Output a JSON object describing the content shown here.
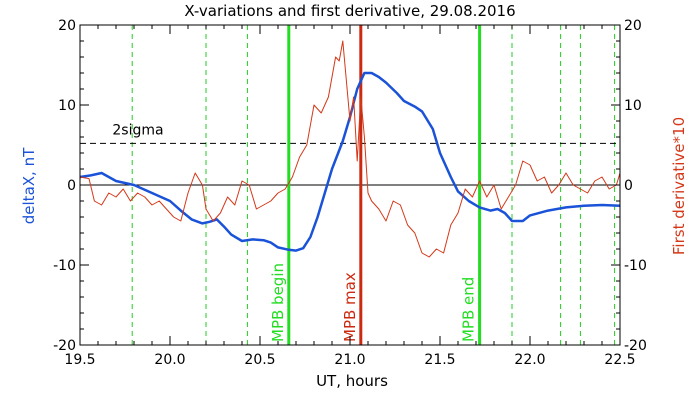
{
  "chart_data": {
    "type": "line",
    "title": "X-variations and first derivative, 29.08.2016",
    "xlabel": "UT, hours",
    "ylabel_left": "deltaX, nT",
    "ylabel_right": "First derivative*10",
    "xlim": [
      19.5,
      22.5
    ],
    "ylim": [
      -20,
      20
    ],
    "x_ticks": [
      "19.5",
      "20.0",
      "20.5",
      "21.0",
      "21.5",
      "22.0",
      "22.5"
    ],
    "x_tick_values": [
      19.5,
      20.0,
      20.5,
      21.0,
      21.5,
      22.0,
      22.5
    ],
    "y_ticks": [
      "20",
      "10",
      "0",
      "-10",
      "-20"
    ],
    "y_tick_values": [
      20,
      10,
      0,
      -10,
      -20
    ],
    "sigma_label": "2sigma",
    "sigma_value": 5.2,
    "zero_line": 0,
    "colors": {
      "deltax": "#1a52d8",
      "derivative": "#d43818",
      "mpb_begin": "#22dd22",
      "mpb_max": "#cc2a10",
      "mpb_end": "#22dd22",
      "dashed_markers": "#22cc22",
      "ylabel_left": "#1a52d8",
      "ylabel_right": "#d43818"
    },
    "dashed_vertical_lines": [
      19.79,
      20.2,
      20.43,
      21.9,
      22.17,
      22.28,
      22.47
    ],
    "events": [
      {
        "label": "MPB begin",
        "x": 20.66
      },
      {
        "label": "MPB max",
        "x": 21.06
      },
      {
        "label": "MPB end",
        "x": 21.72
      }
    ],
    "series": [
      {
        "id": "deltax",
        "x": [
          19.5,
          19.56,
          19.62,
          19.7,
          19.8,
          19.9,
          20.0,
          20.06,
          20.12,
          20.18,
          20.22,
          20.26,
          20.3,
          20.34,
          20.4,
          20.46,
          20.52,
          20.56,
          20.6,
          20.66,
          20.7,
          20.74,
          20.78,
          20.82,
          20.86,
          20.9,
          20.96,
          21.0,
          21.04,
          21.08,
          21.12,
          21.16,
          21.2,
          21.26,
          21.3,
          21.36,
          21.4,
          21.46,
          21.5,
          21.56,
          21.6,
          21.66,
          21.72,
          21.78,
          21.82,
          21.86,
          21.9,
          21.96,
          22.0,
          22.1,
          22.2,
          22.3,
          22.4,
          22.5
        ],
        "y": [
          1.0,
          1.2,
          1.5,
          0.5,
          0.0,
          -1.0,
          -2.0,
          -3.2,
          -4.3,
          -4.8,
          -4.6,
          -4.3,
          -5.2,
          -6.2,
          -7.0,
          -6.8,
          -6.9,
          -7.2,
          -7.8,
          -8.1,
          -8.2,
          -7.9,
          -6.5,
          -4.0,
          -1.0,
          2.0,
          5.5,
          8.5,
          12.0,
          14.0,
          14.0,
          13.5,
          12.8,
          11.5,
          10.5,
          9.8,
          9.2,
          7.0,
          4.0,
          1.0,
          -0.8,
          -2.0,
          -2.8,
          -3.2,
          -3.0,
          -3.5,
          -4.5,
          -4.5,
          -3.8,
          -3.2,
          -2.8,
          -2.6,
          -2.5,
          -2.6
        ]
      },
      {
        "id": "derivative",
        "x": [
          19.5,
          19.55,
          19.58,
          19.62,
          19.66,
          19.7,
          19.74,
          19.78,
          19.82,
          19.86,
          19.9,
          19.94,
          19.98,
          20.02,
          20.06,
          20.1,
          20.14,
          20.18,
          20.2,
          20.24,
          20.28,
          20.32,
          20.36,
          20.4,
          20.44,
          20.48,
          20.52,
          20.56,
          20.6,
          20.64,
          20.68,
          20.72,
          20.76,
          20.8,
          20.84,
          20.88,
          20.92,
          20.94,
          20.96,
          21.0,
          21.02,
          21.04,
          21.06,
          21.08,
          21.1,
          21.12,
          21.16,
          21.2,
          21.24,
          21.28,
          21.32,
          21.36,
          21.4,
          21.44,
          21.48,
          21.52,
          21.56,
          21.6,
          21.64,
          21.68,
          21.72,
          21.76,
          21.8,
          21.84,
          21.88,
          21.92,
          21.96,
          22.0,
          22.04,
          22.08,
          22.12,
          22.16,
          22.2,
          22.24,
          22.28,
          22.32,
          22.36,
          22.4,
          22.44,
          22.48,
          22.5
        ],
        "y": [
          1.0,
          0.8,
          -2.0,
          -2.5,
          -1.0,
          -1.5,
          -0.5,
          -2.0,
          -1.0,
          -1.5,
          -2.5,
          -2.0,
          -3.0,
          -4.0,
          -4.5,
          -1.0,
          1.5,
          0.0,
          -3.0,
          -4.5,
          -3.5,
          -1.5,
          -2.5,
          0.5,
          0.0,
          -3.0,
          -2.5,
          -2.0,
          -1.0,
          -0.5,
          1.0,
          3.5,
          5.0,
          10.0,
          9.0,
          11.0,
          16.0,
          15.5,
          18.0,
          8.0,
          11.0,
          3.0,
          11.0,
          6.0,
          -1.0,
          -2.0,
          -3.0,
          -4.5,
          -2.0,
          -2.5,
          -5.0,
          -6.0,
          -8.5,
          -9.0,
          -8.0,
          -8.5,
          -5.0,
          -3.5,
          -0.5,
          -1.5,
          0.5,
          -1.5,
          0.0,
          -3.0,
          -1.5,
          0.0,
          3.0,
          2.5,
          0.5,
          1.0,
          -1.0,
          0.0,
          1.5,
          0.0,
          -0.5,
          -1.0,
          0.5,
          1.0,
          -0.5,
          0.0,
          1.5
        ]
      }
    ]
  }
}
